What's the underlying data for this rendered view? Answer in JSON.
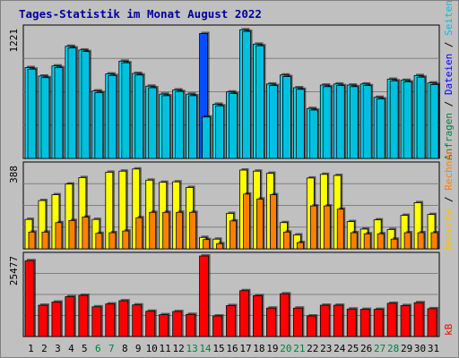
{
  "title": "Tages-Statistik im Monat August 2022",
  "colors": {
    "background": "#c0c0c0",
    "panel": "#c0c0c0",
    "title": "#0000a0",
    "anfragen": "#00e0ff",
    "dateien": "#00e0ff",
    "seiten": "#00c0e0",
    "besuche": "#ffff00",
    "rechner": "#ff8000",
    "kb": "#ff0000",
    "highlight": "#0050ff",
    "weekend_label": "#008040",
    "weekday_label": "#000000"
  },
  "legend_right_top": [
    {
      "text": "Anfragen",
      "color": "#008040"
    },
    {
      "text": " / ",
      "color": "#000000"
    },
    {
      "text": "Dateien",
      "color": "#0000ff"
    },
    {
      "text": " / ",
      "color": "#000000"
    },
    {
      "text": "Seiten",
      "color": "#00c0e0"
    }
  ],
  "legend_right_mid": [
    {
      "text": "Besuche",
      "color": "#ffc000"
    },
    {
      "text": " / ",
      "color": "#000000"
    },
    {
      "text": "Rechner",
      "color": "#ff8000"
    }
  ],
  "legend_right_bottom": [
    {
      "text": "kB",
      "color": "#ff0000"
    }
  ],
  "chart_data": {
    "type": "bar",
    "title": "Tages-Statistik im Monat August 2022",
    "categories": [
      "1",
      "2",
      "3",
      "4",
      "5",
      "6",
      "7",
      "8",
      "9",
      "10",
      "11",
      "12",
      "13",
      "14",
      "15",
      "16",
      "17",
      "18",
      "19",
      "20",
      "21",
      "22",
      "23",
      "24",
      "25",
      "26",
      "27",
      "28",
      "29",
      "30",
      "31"
    ],
    "weekend_days": [
      "6",
      "7",
      "13",
      "14",
      "20",
      "21",
      "27",
      "28"
    ],
    "panels": [
      {
        "name": "requests",
        "ymax_label": "1221",
        "ymax": 1221,
        "series": [
          {
            "name": "Anfragen",
            "values": [
              855,
              775,
              870,
              1055,
              1020,
              635,
              795,
              915,
              800,
              680,
              605,
              645,
              605,
              1175,
              510,
              625,
              1210,
              1075,
              700,
              785,
              665,
              470,
              690,
              700,
              690,
              700,
              575,
              745,
              735,
              780,
              710
            ]
          },
          {
            "name": "Seiten",
            "values": [
              840,
              760,
              855,
              1040,
              1005,
              620,
              780,
              900,
              785,
              665,
              590,
              630,
              590,
              390,
              495,
              610,
              1195,
              1060,
              685,
              770,
              650,
              455,
              675,
              685,
              675,
              685,
              560,
              730,
              720,
              765,
              695
            ]
          }
        ]
      },
      {
        "name": "visits",
        "ymax_label": "388",
        "ymax": 388,
        "series": [
          {
            "name": "Besuche",
            "values": [
              137,
              225,
              252,
              302,
              332,
              137,
              357,
              362,
              372,
              320,
              310,
              312,
              286,
              53,
              45,
              165,
              367,
              362,
              352,
              122,
              65,
              330,
              347,
              342,
              127,
              92,
              135,
              90,
              156,
              215,
              160
            ]
          },
          {
            "name": "Rechner",
            "values": [
              78,
              78,
              122,
              132,
              148,
              72,
              75,
              83,
              145,
              170,
              170,
              170,
              170,
              43,
              24,
              130,
              255,
              232,
              252,
              78,
              29,
              200,
              200,
              185,
              75,
              70,
              70,
              45,
              75,
              75,
              75
            ]
          }
        ]
      },
      {
        "name": "traffic",
        "ymax_label": "25477",
        "ymax": 25477,
        "series": [
          {
            "name": "kB",
            "values": [
              24000,
              9900,
              10900,
              12600,
              13000,
              9400,
              10300,
              11300,
              10000,
              8000,
              6900,
              7900,
              7000,
              25477,
              6500,
              9800,
              14500,
              12900,
              9000,
              13500,
              9000,
              6500,
              9900,
              9900,
              8700,
              8600,
              8600,
              10500,
              9800,
              10700,
              8800
            ]
          }
        ]
      }
    ]
  }
}
